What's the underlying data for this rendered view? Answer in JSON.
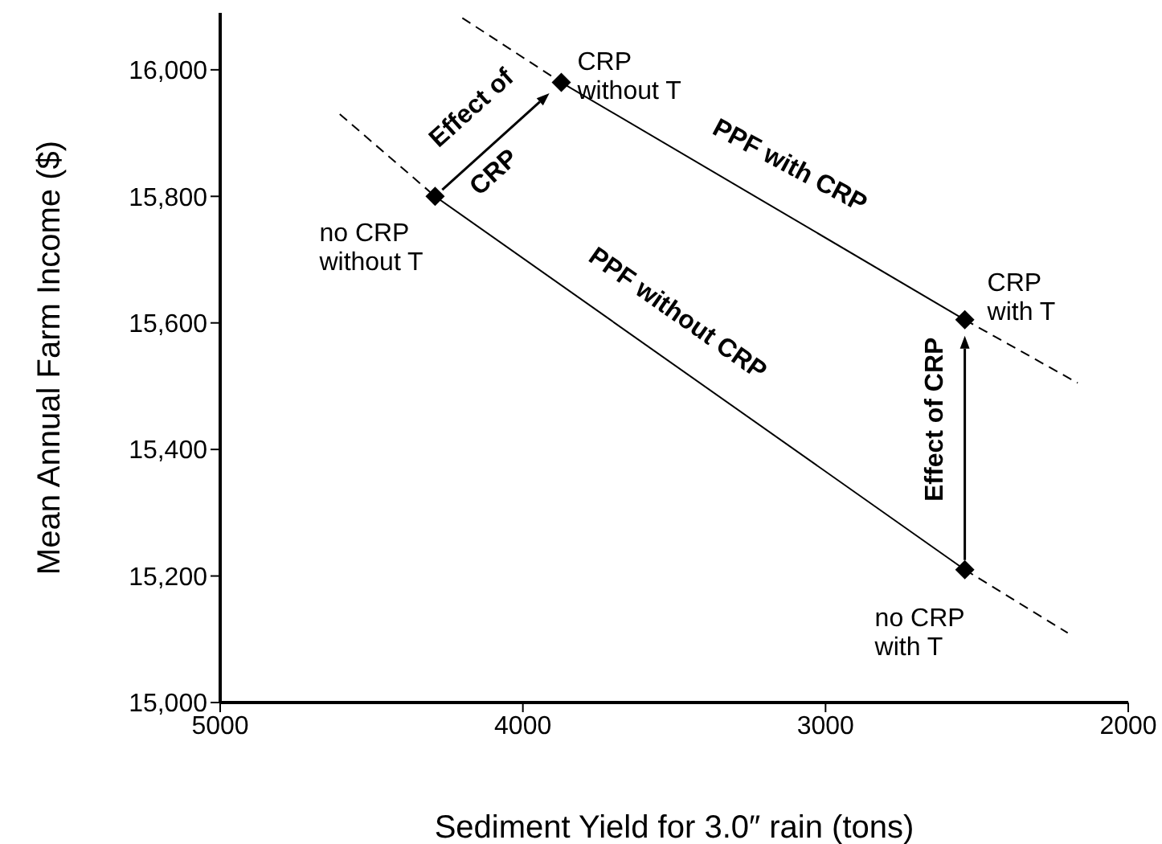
{
  "chart_data": {
    "type": "line",
    "xlabel": "Sediment Yield for 3.0″ rain (tons)",
    "ylabel": "Mean Annual Farm Income ($)",
    "xlim": [
      5000,
      2000
    ],
    "xticks": [
      5000,
      4000,
      3000,
      2000
    ],
    "ylim": [
      15000,
      16090
    ],
    "yticks": [
      {
        "value": 15000,
        "label": "15,000"
      },
      {
        "value": 15200,
        "label": "15,200"
      },
      {
        "value": 15400,
        "label": "15,400"
      },
      {
        "value": 15600,
        "label": "15,600"
      },
      {
        "value": 15800,
        "label": "15,800"
      },
      {
        "value": 16000,
        "label": "16,000"
      }
    ],
    "grid": false,
    "series": [
      {
        "color": "#000000",
        "line_style": "dashed",
        "marker": "none",
        "x": [
          4605,
          4290
        ],
        "values": [
          15930,
          15800
        ]
      },
      {
        "color": "#000000",
        "line_style": "solid",
        "marker": "none",
        "x": [
          4290,
          2540
        ],
        "values": [
          15800,
          15210
        ]
      },
      {
        "color": "#000000",
        "line_style": "dashed",
        "marker": "none",
        "x": [
          2540,
          2200
        ],
        "values": [
          15210,
          15110
        ]
      },
      {
        "color": "#000000",
        "line_style": "dashed",
        "marker": "none",
        "x": [
          4200,
          3873
        ],
        "values": [
          16082,
          15980
        ]
      },
      {
        "color": "#000000",
        "line_style": "solid",
        "marker": "none",
        "x": [
          3873,
          2540
        ],
        "values": [
          15980,
          15605
        ]
      },
      {
        "color": "#000000",
        "line_style": "dashed",
        "marker": "none",
        "x": [
          2540,
          2167
        ],
        "values": [
          15605,
          15505
        ]
      },
      {
        "type": "scatter",
        "color": "#000000",
        "marker": "diamond",
        "x": [
          4290,
          3873,
          2540,
          2540
        ],
        "values": [
          15800,
          15980,
          15605,
          15210
        ]
      }
    ],
    "annotations": [
      {
        "text": "no CRP\nwithout T",
        "x": 4290,
        "y": 15800
      },
      {
        "text": "CRP\nwithout T",
        "x": 3873,
        "y": 15980
      },
      {
        "text": "CRP\nwith T",
        "x": 2540,
        "y": 15605
      },
      {
        "text": "no CRP\nwith T",
        "x": 2540,
        "y": 15210
      },
      "PPF with CRP",
      "PPF without CRP",
      "Effect of",
      "CRP",
      {
        "text": "Effect of CRP",
        "x": 2540,
        "y": 15605
      }
    ]
  }
}
